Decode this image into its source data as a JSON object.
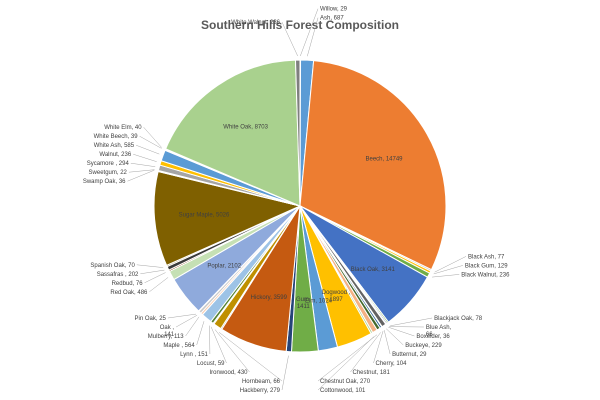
{
  "chart_data": {
    "type": "pie",
    "title": "Southern Hills Forest Composition",
    "slices": [
      {
        "name": "Willow",
        "value": 29,
        "color": "#4472c4"
      },
      {
        "name": "Ash",
        "value": 687,
        "color": "#5b9bd5"
      },
      {
        "name": "Beech",
        "value": 14749,
        "color": "#ed7d31"
      },
      {
        "name": "Black Ash",
        "value": 77,
        "color": "#a5a5a5"
      },
      {
        "name": "Black Gum",
        "value": 129,
        "color": "#ffc000"
      },
      {
        "name": "Black Walnut",
        "value": 236,
        "color": "#70ad47"
      },
      {
        "name": "Black Oak",
        "value": 3141,
        "color": "#4472c4"
      },
      {
        "name": "Blackjack Oak",
        "value": 78,
        "color": "#70ad47"
      },
      {
        "name": "Blue Ash",
        "value": 66,
        "color": "#264478"
      },
      {
        "name": "Boxelder",
        "value": 36,
        "color": "#9e480e"
      },
      {
        "name": "Buckeye",
        "value": 229,
        "color": "#636363"
      },
      {
        "name": "Butternut",
        "value": 29,
        "color": "#997300"
      },
      {
        "name": "Cherry",
        "value": 104,
        "color": "#255e91"
      },
      {
        "name": "Chestnut",
        "value": 181,
        "color": "#43682b"
      },
      {
        "name": "Chestnut  Oak",
        "value": 270,
        "color": "#f4b183"
      },
      {
        "name": "Cottonwood",
        "value": 101,
        "color": "#a9d18e"
      },
      {
        "name": "Dogwood",
        "value": 1897,
        "color": "#ffc000"
      },
      {
        "name": "Elm",
        "value": 1024,
        "color": "#5b9bd5"
      },
      {
        "name": "Gum",
        "value": 1411,
        "color": "#70ad47"
      },
      {
        "name": "Hackberry",
        "value": 279,
        "color": "#264478"
      },
      {
        "name": "Hickory",
        "value": 3599,
        "color": "#c55a11"
      },
      {
        "name": "Hornbeam",
        "value": 66,
        "color": "#7f7f7f"
      },
      {
        "name": "Ironwood",
        "value": 430,
        "color": "#bf9000"
      },
      {
        "name": "Locust",
        "value": 59,
        "color": "#2e75b6"
      },
      {
        "name": "Lynn",
        "value": 151,
        "color": "#548235"
      },
      {
        "name": "Maple",
        "value": 564,
        "color": "#9dc3e6"
      },
      {
        "name": "Mulberry",
        "value": 113,
        "color": "#f8cbad"
      },
      {
        "name": "Oak",
        "value": 141,
        "color": "#c9c9c9"
      },
      {
        "name": "Pin Oak",
        "value": 25,
        "color": "#ffe699"
      },
      {
        "name": "Poplar",
        "value": 2102,
        "color": "#8faadc"
      },
      {
        "name": "Red Oak",
        "value": 486,
        "color": "#c5e0b4"
      },
      {
        "name": "Redbud",
        "value": 76,
        "color": "#843c0c"
      },
      {
        "name": "Sassafras",
        "value": 202,
        "color": "#3a3a3a"
      },
      {
        "name": "Spanish Oak",
        "value": 70,
        "color": "#806000"
      },
      {
        "name": "Sugar Maple",
        "value": 5026,
        "color": "#7f6000"
      },
      {
        "name": "Swamp Oak",
        "value": 36,
        "color": "#4472c4"
      },
      {
        "name": "Sweetgum",
        "value": 22,
        "color": "#ed7d31"
      },
      {
        "name": "Sycamore",
        "value": 294,
        "color": "#a5a5a5"
      },
      {
        "name": "Walnut",
        "value": 236,
        "color": "#ffc000"
      },
      {
        "name": "White Ash",
        "value": 585,
        "color": "#5b9bd5"
      },
      {
        "name": "White Beech",
        "value": 39,
        "color": "#70ad47"
      },
      {
        "name": "White Elm",
        "value": 40,
        "color": "#264478"
      },
      {
        "name": "White Oak",
        "value": 8703,
        "color": "#a9d18e"
      },
      {
        "name": "White Walnut",
        "value": 236,
        "color": "#7f7f7f"
      }
    ],
    "labels": [
      "Willow, 29",
      "Ash, 687",
      "Beech, 14749",
      "Black Ash, 77",
      "Black Gum, 129",
      "Black Walnut, 236",
      "Black Oak, 3141",
      "Blackjack Oak, 78",
      "Blue Ash,\n66",
      "Boxelder, 36",
      "Buckeye, 229",
      "Butternut,  29",
      "Cherry, 104",
      "Chestnut, 181",
      "Chestnut  Oak, 270",
      "Cottonwood,  101",
      "Dogwood ,\n1897",
      "Elm, 1024",
      "Gum,\n1411",
      "Hackberry, 279",
      "Hickory, 3599",
      "Hornbeam, 66",
      "Ironwood, 430",
      "Locust, 59",
      "Lynn , 151",
      "Maple , 564",
      "Mulberry, 113",
      "Oak ,\n141",
      "Pin Oak, 25",
      "Poplar, 2102",
      "Red Oak, 486",
      "Redbud, 76",
      "Sassafras , 202",
      "Spanish Oak, 70",
      "Sugar Maple, 5026",
      "Swamp Oak, 36",
      "Sweetgum, 22",
      "Sycamore , 294",
      "Walnut, 236",
      "White Ash, 585",
      "White Beech, 39",
      "White Elm, 40",
      "White Oak, 8703",
      "White Walnut, 236"
    ],
    "legend": "none",
    "start_angle_deg": 0,
    "direction": "clockwise"
  }
}
